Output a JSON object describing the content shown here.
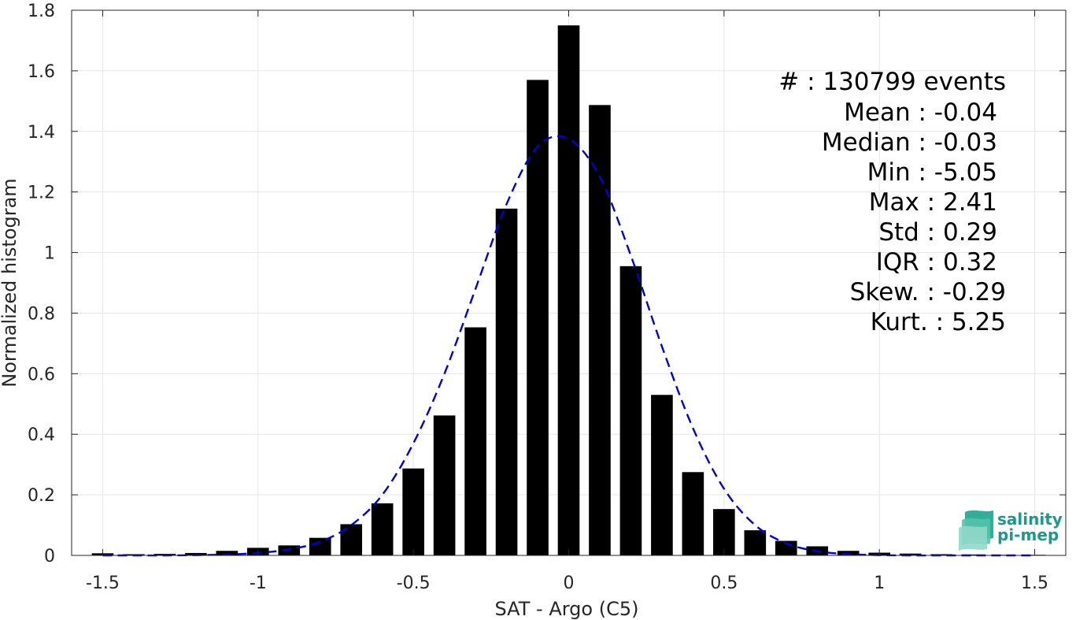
{
  "chart_data": {
    "type": "bar",
    "xlabel": "SAT - Argo (C5)",
    "ylabel": "Normalized histogram",
    "xlim": [
      -1.6,
      1.6
    ],
    "ylim": [
      0,
      1.8
    ],
    "xticks": [
      -1.5,
      -1,
      -0.5,
      0,
      0.5,
      1,
      1.5
    ],
    "xtick_labels": [
      "-1.5",
      "-1",
      "-0.5",
      "0",
      "0.5",
      "1",
      "1.5"
    ],
    "yticks": [
      0,
      0.2,
      0.4,
      0.6,
      0.8,
      1,
      1.2,
      1.4,
      1.6,
      1.8
    ],
    "ytick_labels": [
      "0",
      "0.2",
      "0.4",
      "0.6",
      "0.8",
      "1",
      "1.2",
      "1.4",
      "1.6",
      "1.8"
    ],
    "grid": true,
    "bin_width": 0.1,
    "bar_width": 0.07,
    "x": [
      -1.5,
      -1.4,
      -1.3,
      -1.2,
      -1.1,
      -1.0,
      -0.9,
      -0.8,
      -0.7,
      -0.6,
      -0.5,
      -0.4,
      -0.3,
      -0.2,
      -0.1,
      0.0,
      0.1,
      0.2,
      0.3,
      0.4,
      0.5,
      0.6,
      0.7,
      0.8,
      0.9,
      1.0,
      1.1,
      1.2,
      1.3,
      1.4,
      1.5
    ],
    "values": [
      0.007,
      0.004,
      0.005,
      0.008,
      0.015,
      0.025,
      0.033,
      0.058,
      0.103,
      0.172,
      0.287,
      0.462,
      0.753,
      1.145,
      1.57,
      1.75,
      1.487,
      0.955,
      0.53,
      0.275,
      0.153,
      0.083,
      0.048,
      0.03,
      0.015,
      0.009,
      0.006,
      0.004,
      0.003,
      0.002,
      0.002
    ],
    "fit_curve": {
      "style": "dashed",
      "color": "#0000dd",
      "x": [
        -1.5,
        -1.4,
        -1.3,
        -1.2,
        -1.1,
        -1.0,
        -0.9,
        -0.8,
        -0.7,
        -0.6,
        -0.5,
        -0.4,
        -0.3,
        -0.2,
        -0.1,
        0.0,
        0.1,
        0.2,
        0.3,
        0.4,
        0.5,
        0.6,
        0.7,
        0.8,
        0.9,
        1.0,
        1.1,
        1.2,
        1.3,
        1.4,
        1.5
      ],
      "y": [
        0.0,
        0.0,
        0.0,
        0.001,
        0.003,
        0.008,
        0.02,
        0.045,
        0.1,
        0.2,
        0.37,
        0.6,
        0.88,
        1.16,
        1.35,
        1.375,
        1.25,
        0.99,
        0.69,
        0.42,
        0.22,
        0.1,
        0.04,
        0.014,
        0.004,
        0.001,
        0.0,
        0.0,
        0.0,
        0.0,
        0.0
      ]
    },
    "annotations": [
      "#  : 130799 events",
      "Mean : -0.04",
      "Median : -0.03",
      "Min : -5.05",
      "Max : 2.41",
      "Std : 0.29",
      "IQR : 0.32",
      "Skew. : -0.29",
      "Kurt. : 5.25"
    ],
    "logo": [
      "salinity",
      "pi-mep"
    ],
    "colors": {
      "bars": "#000000",
      "fit": "#0000dd",
      "grid": "#e6e6e6",
      "axis": "#262626"
    }
  }
}
